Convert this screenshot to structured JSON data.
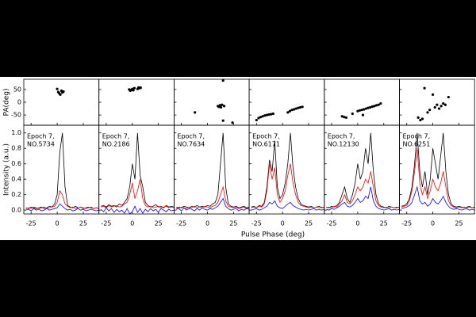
{
  "figure": {
    "xlabel": "Pulse Phase (deg)"
  },
  "chart_data": [
    {
      "type": "scatter",
      "ylabel": "PA(deg)",
      "xlim": [
        -32,
        40
      ],
      "ylim": [
        -90,
        90
      ],
      "yticks": [
        -50,
        0,
        50
      ],
      "color": "#000000",
      "x": [
        0,
        1,
        2,
        3,
        4,
        5,
        6
      ],
      "values": [
        52,
        40,
        35,
        30,
        45,
        38,
        42
      ]
    },
    {
      "type": "line",
      "ylabel": "Intensity (a.u.)",
      "annotation": [
        "Epoch 7,",
        "NO.5734"
      ],
      "xlim": [
        -32,
        40
      ],
      "ylim": [
        -0.05,
        1.1
      ],
      "yticks": [
        {
          "value": 0,
          "label": "0.0"
        },
        0.2,
        0.4,
        0.6,
        0.8,
        {
          "value": 1,
          "label": "1.0"
        }
      ],
      "xticks": [
        -25,
        0,
        25
      ],
      "x": [
        -30,
        -27.5,
        -25,
        -22.5,
        -20,
        -17.5,
        -15,
        -12.5,
        -10,
        -7.5,
        -5,
        -2.5,
        0,
        2.5,
        5,
        7.5,
        10,
        12.5,
        15,
        17.5,
        20,
        22.5,
        25,
        27.5,
        30,
        32.5,
        35,
        37.5,
        40
      ],
      "series": [
        {
          "color": "#000000",
          "values": [
            0.03,
            0.02,
            0.04,
            0.03,
            0.02,
            0.03,
            0.04,
            0.02,
            0.03,
            0.05,
            0.04,
            0.08,
            0.2,
            0.75,
            1.0,
            0.3,
            0.06,
            0.04,
            0.03,
            0.05,
            0.03,
            0.04,
            0.02,
            0.03,
            0.04,
            0.03,
            0.02,
            0.03,
            0.02
          ]
        },
        {
          "color": "#ff0000",
          "values": [
            0.02,
            0.03,
            0.02,
            0.04,
            0.03,
            0.02,
            0.03,
            0.04,
            0.02,
            0.03,
            0.04,
            0.05,
            0.1,
            0.25,
            0.2,
            0.08,
            0.05,
            0.03,
            0.04,
            0.02,
            0.03,
            0.04,
            0.03,
            0.02,
            0.03,
            0.04,
            0.02,
            0.03,
            0.02
          ]
        },
        {
          "color": "#0000ff",
          "values": [
            0.0,
            0.01,
            -0.01,
            0.02,
            0.0,
            0.01,
            -0.01,
            0.0,
            0.02,
            0.0,
            0.01,
            0.02,
            0.03,
            0.08,
            0.05,
            0.02,
            0.0,
            0.01,
            -0.01,
            0.0,
            0.02,
            0.0,
            0.01,
            -0.01,
            0.0,
            0.01,
            0.0,
            -0.01,
            0.0
          ]
        }
      ]
    },
    {
      "type": "scatter",
      "xlim": [
        -32,
        40
      ],
      "ylim": [
        -90,
        90
      ],
      "color": "#000000",
      "x": [
        -3,
        -2,
        -1,
        0,
        1,
        2,
        5,
        6,
        7,
        8
      ],
      "values": [
        50,
        45,
        48,
        52,
        47,
        55,
        52,
        58,
        55,
        57
      ]
    },
    {
      "type": "line",
      "annotation": [
        "Epoch 7,",
        "NO.2186"
      ],
      "xlim": [
        -32,
        40
      ],
      "ylim": [
        -0.05,
        1.1
      ],
      "xticks": [
        -25,
        0,
        25
      ],
      "x": [
        -30,
        -27.5,
        -25,
        -22.5,
        -20,
        -17.5,
        -15,
        -12.5,
        -10,
        -7.5,
        -5,
        -2.5,
        0,
        2.5,
        5,
        7.5,
        10,
        12.5,
        15,
        17.5,
        20,
        22.5,
        25,
        27.5,
        30,
        32.5,
        35,
        37.5,
        40
      ],
      "series": [
        {
          "color": "#000000",
          "values": [
            0.05,
            0.06,
            0.04,
            0.07,
            0.05,
            0.06,
            0.04,
            0.08,
            0.06,
            0.1,
            0.15,
            0.3,
            0.6,
            0.4,
            1.0,
            0.45,
            0.3,
            0.1,
            0.06,
            0.04,
            0.05,
            0.07,
            0.04,
            0.05,
            0.03,
            0.06,
            0.04,
            0.05,
            0.04
          ]
        },
        {
          "color": "#ff0000",
          "values": [
            0.04,
            0.05,
            0.03,
            0.06,
            0.04,
            0.05,
            0.06,
            0.04,
            0.05,
            0.08,
            0.1,
            0.2,
            0.35,
            0.15,
            0.25,
            0.4,
            0.15,
            0.06,
            0.04,
            0.05,
            0.03,
            0.04,
            0.05,
            0.03,
            0.04,
            0.05,
            0.03,
            0.04,
            0.03
          ]
        },
        {
          "color": "#0000ff",
          "values": [
            0.01,
            -0.02,
            0.03,
            -0.01,
            0.02,
            -0.03,
            0.01,
            -0.02,
            0.0,
            -0.04,
            0.02,
            -0.05,
            -0.02,
            0.05,
            -0.03,
            0.02,
            -0.04,
            0.01,
            -0.02,
            0.02,
            -0.01,
            0.01,
            -0.03,
            0.02,
            0.0,
            -0.02,
            0.01,
            -0.01,
            0.0
          ]
        }
      ]
    },
    {
      "type": "scatter",
      "xlim": [
        -32,
        40
      ],
      "ylim": [
        -90,
        90
      ],
      "color": "#000000",
      "x": [
        -12,
        10,
        11,
        12,
        13,
        14,
        16,
        15,
        15,
        24
      ],
      "values": [
        -40,
        -15,
        -18,
        -12,
        -20,
        -10,
        -15,
        -72,
        85,
        -80
      ]
    },
    {
      "type": "line",
      "annotation": [
        "Epoch 7,",
        "NO.7634"
      ],
      "xlim": [
        -32,
        40
      ],
      "ylim": [
        -0.05,
        1.1
      ],
      "xticks": [
        -25,
        0,
        25
      ],
      "x": [
        -30,
        -27.5,
        -25,
        -22.5,
        -20,
        -17.5,
        -15,
        -12.5,
        -10,
        -7.5,
        -5,
        -2.5,
        0,
        2.5,
        5,
        7.5,
        10,
        12.5,
        15,
        17.5,
        20,
        22.5,
        25,
        27.5,
        30,
        32.5,
        35,
        37.5,
        40
      ],
      "series": [
        {
          "color": "#000000",
          "values": [
            0.03,
            0.04,
            0.03,
            0.05,
            0.04,
            0.03,
            0.05,
            0.04,
            0.06,
            0.04,
            0.05,
            0.04,
            0.06,
            0.05,
            0.08,
            0.1,
            0.2,
            0.6,
            1.0,
            0.3,
            0.08,
            0.05,
            0.04,
            0.05,
            0.03,
            0.04,
            0.05,
            0.03,
            0.04
          ]
        },
        {
          "color": "#ff0000",
          "values": [
            0.03,
            0.02,
            0.04,
            0.03,
            0.02,
            0.04,
            0.03,
            0.05,
            0.03,
            0.04,
            0.03,
            0.05,
            0.04,
            0.03,
            0.05,
            0.06,
            0.1,
            0.2,
            0.3,
            0.12,
            0.05,
            0.04,
            0.03,
            0.04,
            0.02,
            0.03,
            0.04,
            0.02,
            0.03
          ]
        },
        {
          "color": "#0000ff",
          "values": [
            0.01,
            0.02,
            -0.01,
            0.03,
            0.0,
            0.02,
            0.01,
            -0.01,
            0.02,
            0.0,
            0.03,
            0.01,
            0.0,
            0.02,
            0.01,
            0.03,
            0.05,
            0.1,
            0.15,
            0.05,
            0.02,
            0.0,
            0.01,
            0.02,
            -0.01,
            0.01,
            0.0,
            0.02,
            0.01
          ]
        }
      ]
    },
    {
      "type": "scatter",
      "xlim": [
        -32,
        40
      ],
      "ylim": [
        -90,
        90
      ],
      "color": "#000000",
      "x": [
        -25,
        -23,
        -21,
        -19,
        -17,
        -15,
        -13,
        -11,
        -9,
        5,
        7,
        9,
        11,
        13,
        15,
        17,
        19
      ],
      "values": [
        -70,
        -62,
        -58,
        -55,
        -52,
        -50,
        -48,
        -47,
        -45,
        -40,
        -35,
        -30,
        -28,
        -25,
        -22,
        -20,
        -18
      ]
    },
    {
      "type": "line",
      "annotation": [
        "Epoch 7,",
        "NO.6171"
      ],
      "xlim": [
        -32,
        40
      ],
      "ylim": [
        -0.05,
        1.1
      ],
      "xticks": [
        -25,
        0,
        25
      ],
      "x": [
        -30,
        -27.5,
        -25,
        -22.5,
        -20,
        -17.5,
        -15,
        -12.5,
        -10,
        -7.5,
        -5,
        -2.5,
        0,
        2.5,
        5,
        7.5,
        10,
        12.5,
        15,
        17.5,
        20,
        22.5,
        25,
        27.5,
        30,
        32.5,
        35,
        37.5,
        40
      ],
      "series": [
        {
          "color": "#000000",
          "values": [
            0.04,
            0.05,
            0.03,
            0.06,
            0.05,
            0.1,
            0.3,
            0.65,
            0.5,
            0.9,
            0.3,
            0.15,
            0.2,
            0.35,
            0.6,
            1.0,
            0.55,
            0.3,
            0.15,
            0.08,
            0.06,
            0.05,
            0.04,
            0.05,
            0.03,
            0.04,
            0.05,
            0.03,
            0.04
          ]
        },
        {
          "color": "#ff0000",
          "values": [
            0.03,
            0.04,
            0.03,
            0.05,
            0.04,
            0.08,
            0.25,
            0.6,
            0.4,
            0.55,
            0.2,
            0.1,
            0.15,
            0.25,
            0.45,
            0.6,
            0.35,
            0.2,
            0.1,
            0.06,
            0.05,
            0.04,
            0.03,
            0.04,
            0.03,
            0.04,
            0.03,
            0.04,
            0.03
          ]
        },
        {
          "color": "#0000ff",
          "values": [
            0.0,
            0.01,
            0.02,
            0.0,
            0.01,
            0.03,
            0.05,
            0.1,
            0.08,
            0.12,
            0.05,
            0.03,
            0.02,
            0.05,
            0.08,
            0.1,
            0.06,
            0.04,
            0.02,
            0.01,
            0.0,
            0.01,
            0.0,
            0.01,
            0.02,
            0.0,
            0.01,
            0.0,
            0.01
          ]
        }
      ]
    },
    {
      "type": "scatter",
      "xlim": [
        -32,
        40
      ],
      "ylim": [
        -90,
        90
      ],
      "color": "#000000",
      "x": [
        -15,
        -13,
        -11,
        -5,
        0,
        2,
        4,
        5,
        6,
        8,
        10,
        12,
        14,
        16,
        18,
        20,
        22
      ],
      "values": [
        -55,
        -58,
        -60,
        -45,
        -35,
        -32,
        -30,
        -50,
        -28,
        -25,
        -22,
        -20,
        -17,
        -15,
        -12,
        -10,
        -5
      ]
    },
    {
      "type": "line",
      "annotation": [
        "Epoch 7,",
        "NO.12130"
      ],
      "xlim": [
        -32,
        40
      ],
      "ylim": [
        -0.05,
        1.1
      ],
      "xticks": [
        -25,
        0,
        25
      ],
      "x": [
        -30,
        -27.5,
        -25,
        -22.5,
        -20,
        -17.5,
        -15,
        -12.5,
        -10,
        -7.5,
        -5,
        -2.5,
        0,
        2.5,
        5,
        7.5,
        10,
        12.5,
        15,
        17.5,
        20,
        22.5,
        25,
        27.5,
        30,
        32.5,
        35,
        37.5,
        40
      ],
      "series": [
        {
          "color": "#000000",
          "values": [
            0.04,
            0.03,
            0.05,
            0.04,
            0.06,
            0.1,
            0.2,
            0.3,
            0.15,
            0.1,
            0.2,
            0.35,
            0.6,
            0.4,
            0.5,
            0.8,
            0.6,
            1.0,
            0.5,
            0.2,
            0.08,
            0.05,
            0.04,
            0.03,
            0.05,
            0.04,
            0.03,
            0.04,
            0.03
          ]
        },
        {
          "color": "#ff0000",
          "values": [
            0.03,
            0.04,
            0.03,
            0.05,
            0.04,
            0.08,
            0.12,
            0.2,
            0.1,
            0.08,
            0.12,
            0.2,
            0.3,
            0.25,
            0.3,
            0.4,
            0.35,
            0.5,
            0.3,
            0.12,
            0.06,
            0.04,
            0.03,
            0.04,
            0.03,
            0.04,
            0.03,
            0.03,
            0.04
          ]
        },
        {
          "color": "#0000ff",
          "values": [
            0.01,
            0.0,
            0.02,
            0.01,
            0.03,
            0.05,
            0.08,
            0.1,
            0.05,
            0.04,
            0.06,
            0.1,
            0.15,
            0.1,
            0.12,
            0.18,
            0.15,
            0.3,
            0.12,
            0.05,
            0.02,
            0.01,
            0.0,
            0.01,
            0.02,
            0.0,
            0.01,
            0.0,
            0.01
          ]
        }
      ]
    },
    {
      "type": "scatter",
      "xlim": [
        -32,
        40
      ],
      "ylim": [
        -90,
        90
      ],
      "color": "#000000",
      "x": [
        -14,
        -12,
        -10,
        -8,
        -5,
        -3,
        0,
        2,
        4,
        6,
        8,
        10,
        12,
        15
      ],
      "values": [
        -60,
        -70,
        -65,
        55,
        -40,
        -30,
        30,
        -20,
        -10,
        -25,
        -15,
        -5,
        -10,
        20
      ]
    },
    {
      "type": "line",
      "annotation": [
        "Epoch 7,",
        "NO.6251"
      ],
      "xlim": [
        -32,
        40
      ],
      "ylim": [
        -0.05,
        1.1
      ],
      "xticks": [
        -25,
        0,
        25
      ],
      "x": [
        -30,
        -27.5,
        -25,
        -22.5,
        -20,
        -17.5,
        -15,
        -12.5,
        -10,
        -7.5,
        -5,
        -2.5,
        0,
        2.5,
        5,
        7.5,
        10,
        12.5,
        15,
        17.5,
        20,
        22.5,
        25,
        27.5,
        30,
        32.5,
        35,
        37.5,
        40
      ],
      "series": [
        {
          "color": "#000000",
          "values": [
            0.05,
            0.06,
            0.08,
            0.15,
            0.3,
            0.6,
            1.0,
            0.5,
            0.3,
            0.5,
            0.2,
            0.4,
            0.8,
            0.6,
            0.4,
            0.7,
            1.0,
            0.5,
            0.2,
            0.08,
            0.05,
            0.04,
            0.05,
            0.04,
            0.03,
            0.04,
            0.05,
            0.03,
            0.04
          ]
        },
        {
          "color": "#ff0000",
          "values": [
            0.04,
            0.05,
            0.06,
            0.12,
            0.25,
            0.5,
            0.8,
            0.35,
            0.2,
            0.3,
            0.15,
            0.25,
            0.4,
            0.3,
            0.25,
            0.35,
            0.5,
            0.3,
            0.12,
            0.06,
            0.04,
            0.03,
            0.04,
            0.03,
            0.04,
            0.03,
            0.04,
            0.03,
            0.03
          ]
        },
        {
          "color": "#0000ff",
          "values": [
            0.02,
            0.03,
            0.04,
            0.06,
            0.1,
            0.2,
            0.3,
            0.12,
            0.08,
            0.1,
            0.05,
            0.08,
            0.15,
            0.1,
            0.08,
            0.12,
            0.18,
            0.1,
            0.05,
            0.02,
            0.01,
            0.02,
            0.01,
            0.0,
            0.01,
            0.02,
            0.0,
            0.01,
            0.0
          ]
        }
      ]
    }
  ]
}
